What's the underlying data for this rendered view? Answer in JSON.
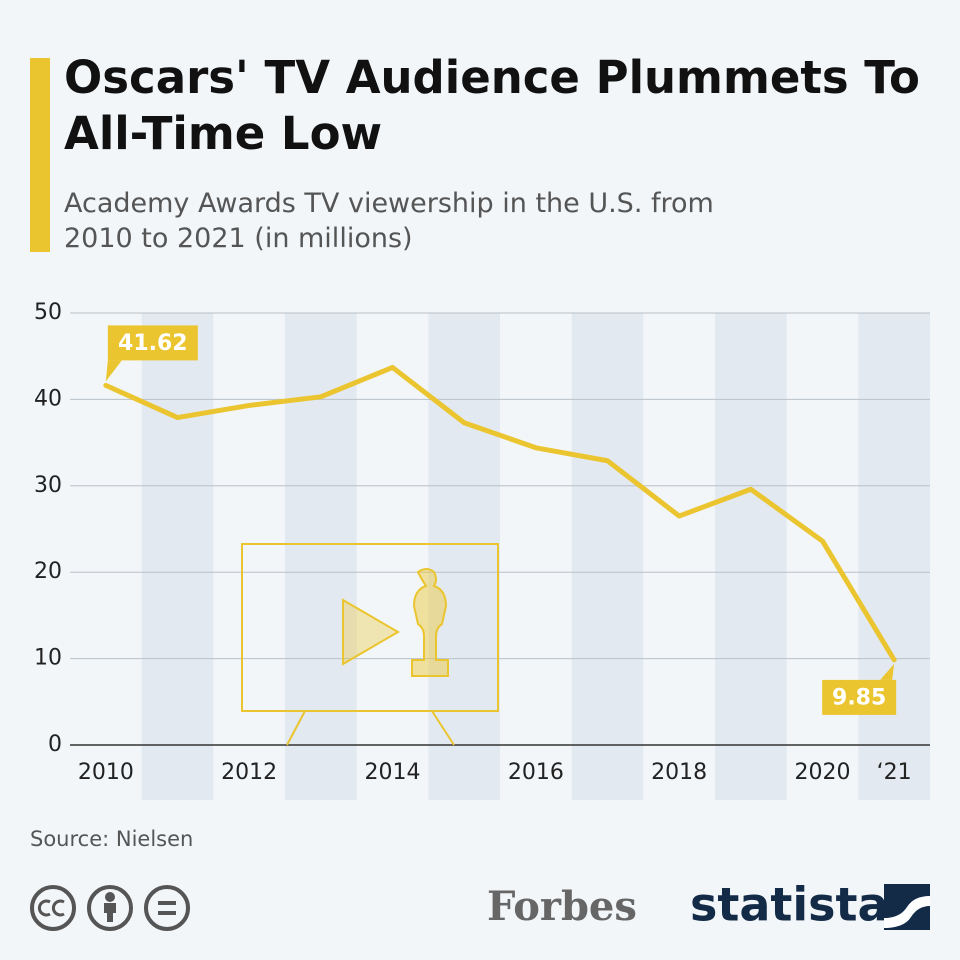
{
  "chart_data": {
    "type": "line",
    "title": "Oscars' TV Audience Plummets To All-Time Low",
    "subtitle": "Academy Awards TV viewership in the U.S. from 2010 to 2021 (in millions)",
    "categories": [
      "2010",
      null,
      "2012",
      null,
      "2014",
      null,
      "2016",
      null,
      "2018",
      null,
      "2020",
      "‘21"
    ],
    "values": [
      41.62,
      37.9,
      39.3,
      40.3,
      43.7,
      37.3,
      34.4,
      32.9,
      26.5,
      29.6,
      23.6,
      9.85
    ],
    "value_labels": [
      "41.62",
      null,
      null,
      null,
      null,
      null,
      null,
      null,
      null,
      null,
      null,
      "9.85"
    ],
    "color": "#ebc52f",
    "ylim": [
      0,
      50
    ],
    "yticks": [
      0,
      10,
      20,
      30,
      40,
      50
    ],
    "grid": true,
    "source": "Source: Nielsen",
    "logos": [
      "Forbes",
      "statista"
    ]
  }
}
